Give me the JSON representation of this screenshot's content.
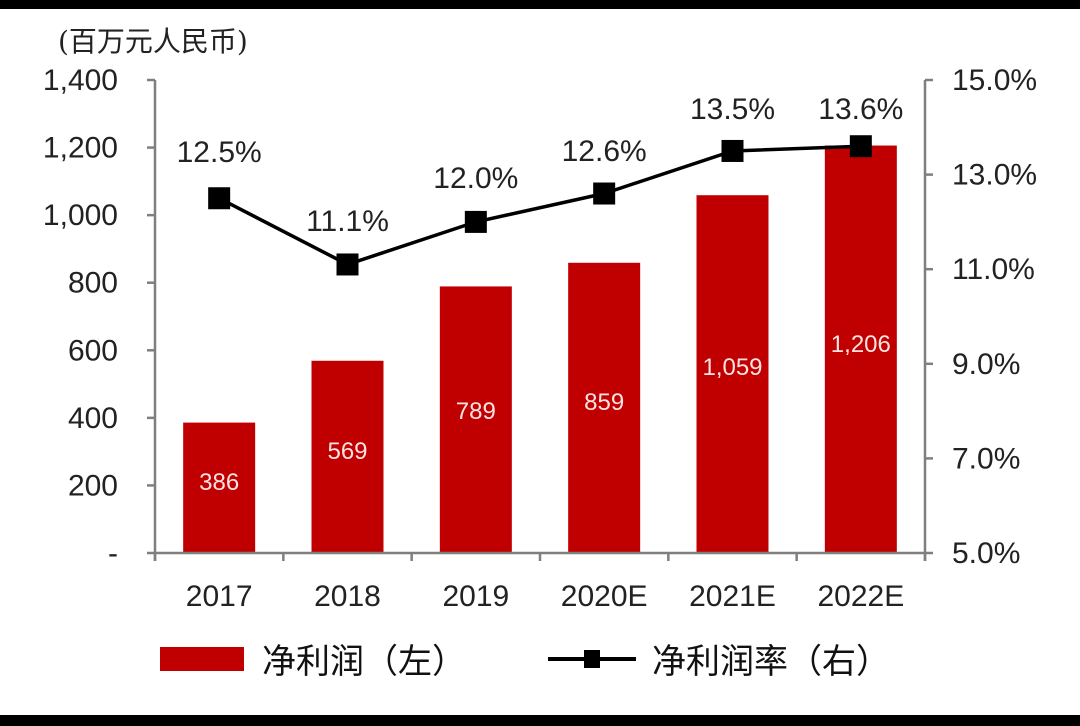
{
  "chart_data": {
    "type": "bar",
    "title": "",
    "unit_label": "(百万元人民币)",
    "categories": [
      "2017",
      "2018",
      "2019",
      "2020E",
      "2021E",
      "2022E"
    ],
    "series": [
      {
        "name": "净利润（左）",
        "type": "bar",
        "axis": "left",
        "color": "#c00000",
        "values": [
          386,
          569,
          789,
          859,
          1059,
          1206
        ],
        "labels": [
          "386",
          "569",
          "789",
          "859",
          "1,059",
          "1,206"
        ]
      },
      {
        "name": "净利润率（右）",
        "type": "line",
        "axis": "right",
        "color": "#000000",
        "marker": "square",
        "values": [
          12.5,
          11.1,
          12.0,
          12.6,
          13.5,
          13.6
        ],
        "labels": [
          "12.5%",
          "11.1%",
          "12.0%",
          "12.6%",
          "13.5%",
          "13.6%"
        ]
      }
    ],
    "y_left": {
      "ylim": [
        0,
        1400
      ],
      "ticks": [
        0,
        200,
        400,
        600,
        800,
        1000,
        1200,
        1400
      ],
      "tick_labels": [
        "-",
        "200",
        "400",
        "600",
        "800",
        "1,000",
        "1,200",
        "1,400"
      ]
    },
    "y_right": {
      "ylim": [
        5.0,
        15.0
      ],
      "ticks": [
        5,
        7,
        9,
        11,
        13,
        15
      ],
      "tick_labels": [
        "5.0%",
        "7.0%",
        "9.0%",
        "11.0%",
        "13.0%",
        "15.0%"
      ]
    },
    "xlabel": "",
    "grid": false,
    "legend": {
      "position": "bottom",
      "entries": [
        "净利润（左）",
        "净利润率（右）"
      ]
    }
  }
}
